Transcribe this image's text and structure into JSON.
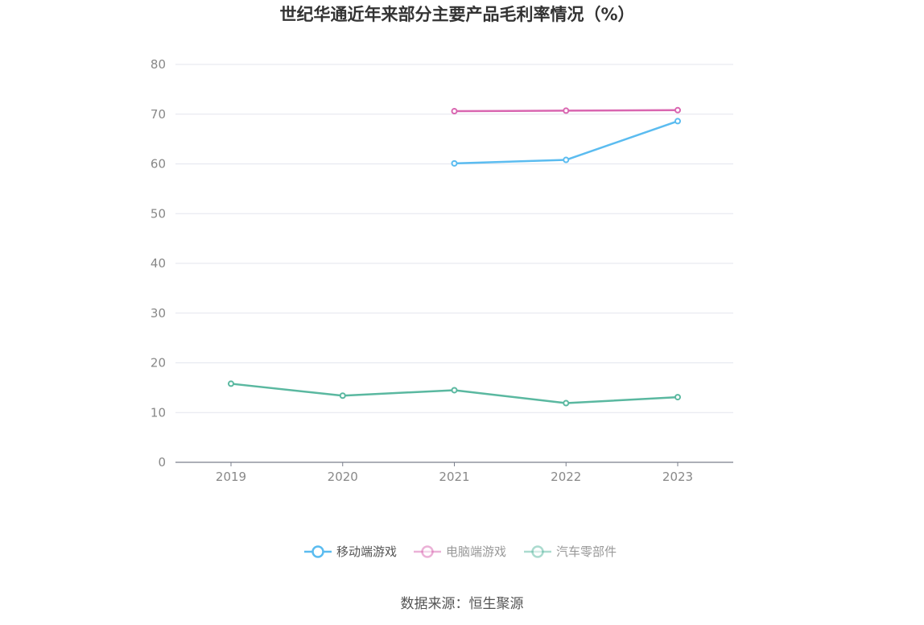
{
  "chart_data": {
    "type": "line",
    "title": "世纪华通近年来部分主要产品毛利率情况（%）",
    "x": [
      "2019",
      "2020",
      "2021",
      "2022",
      "2023"
    ],
    "ylim": [
      0,
      80
    ],
    "yticks": [
      "0",
      "10",
      "20",
      "30",
      "40",
      "50",
      "60",
      "70",
      "80"
    ],
    "grid": true,
    "legend_position": "bottom-center",
    "series": [
      {
        "name": "移动端游戏",
        "color": "#5bbcf0",
        "values": [
          null,
          null,
          60.1,
          60.8,
          68.6
        ]
      },
      {
        "name": "电脑端游戏",
        "color": "#d966b0",
        "values": [
          null,
          null,
          70.6,
          70.7,
          70.8
        ]
      },
      {
        "name": "汽车零部件",
        "color": "#5ab8a0",
        "values": [
          15.8,
          13.4,
          14.5,
          11.9,
          13.1
        ]
      }
    ],
    "source": "数据来源：恒生聚源"
  }
}
